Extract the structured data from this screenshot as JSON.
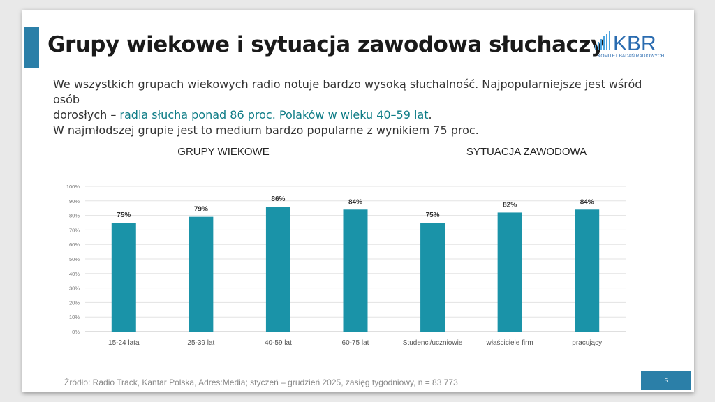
{
  "slide": {
    "title": "Grupy wiekowe i sytuacja zawodowa słuchaczy",
    "intro_line1": "We wszystkich grupach wiekowych radio notuje bardzo wysoką słuchalność. Najpopularniejsze jest wśród osób",
    "intro_line2_prefix": "dorosłych – ",
    "intro_line2_highlight": "radia słucha ponad 86 proc. Polaków w wieku 40–59 lat",
    "intro_line2_suffix": ".",
    "intro_line3": "W najmłodszej grupie jest to medium bardzo popularne z wynikiem 75 proc.",
    "source": "Źródło: Radio Track, Kantar Polska, Adres:Media; styczeń – grudzień 2025, zasięg tygodniowy, n = 83 773",
    "page_number": "5",
    "highlight_color": "#0e7c86",
    "accent_color": "#2b7fa8"
  },
  "logo": {
    "text": "KBR",
    "subtitle": "KOMITET BADAŃ RADIOWYCH",
    "color": "#2b6cb0",
    "icon": "bar-signal-icon"
  },
  "chart_data": {
    "type": "bar",
    "group_titles": [
      "GRUPY WIEKOWE",
      "SYTUACJA ZAWODOWA"
    ],
    "categories": [
      "15-24 lata",
      "25-39 lat",
      "40-59 lat",
      "60-75 lat",
      "Studenci/uczniowie",
      "właściciele firm",
      "pracujący"
    ],
    "values": [
      75,
      79,
      86,
      84,
      75,
      82,
      84
    ],
    "data_labels": [
      "75%",
      "79%",
      "86%",
      "84%",
      "75%",
      "82%",
      "84%"
    ],
    "ylim": [
      0,
      100
    ],
    "yticks": [
      "0%",
      "10%",
      "20%",
      "30%",
      "40%",
      "50%",
      "60%",
      "70%",
      "80%",
      "90%",
      "100%"
    ],
    "grid": true,
    "bar_color": "#1a93a8"
  }
}
